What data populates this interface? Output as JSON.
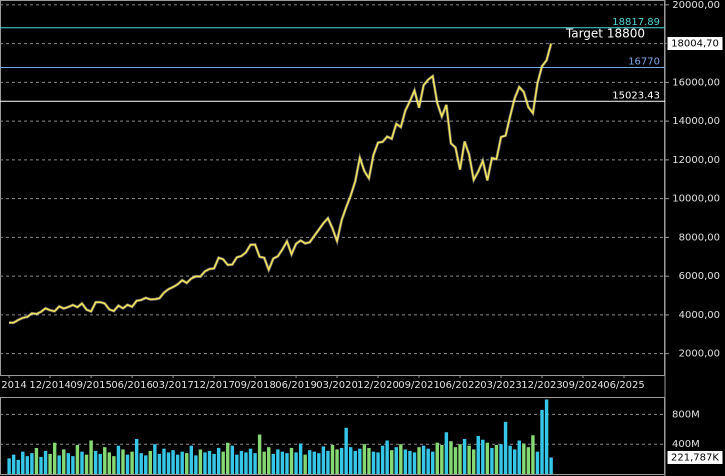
{
  "chart_data": {
    "type": "line",
    "x": [
      "03/2014",
      "04/2014",
      "05/2014",
      "06/2014",
      "07/2014",
      "08/2014",
      "09/2014",
      "10/2014",
      "11/2014",
      "12/2014",
      "01/2015",
      "02/2015",
      "03/2015",
      "04/2015",
      "05/2015",
      "06/2015",
      "07/2015",
      "08/2015",
      "09/2015",
      "10/2015",
      "11/2015",
      "12/2015",
      "01/2016",
      "02/2016",
      "03/2016",
      "04/2016",
      "05/2016",
      "06/2016",
      "07/2016",
      "08/2016",
      "09/2016",
      "10/2016",
      "11/2016",
      "12/2016",
      "01/2017",
      "02/2017",
      "03/2017",
      "04/2017",
      "05/2017",
      "06/2017",
      "07/2017",
      "08/2017",
      "09/2017",
      "10/2017",
      "11/2017",
      "12/2017",
      "01/2018",
      "02/2018",
      "03/2018",
      "04/2018",
      "05/2018",
      "06/2018",
      "07/2018",
      "08/2018",
      "09/2018",
      "10/2018",
      "11/2018",
      "12/2018",
      "01/2019",
      "02/2019",
      "03/2019",
      "04/2019",
      "05/2019",
      "06/2019",
      "07/2019",
      "08/2019",
      "09/2019",
      "10/2019",
      "11/2019",
      "12/2019",
      "01/2020",
      "02/2020",
      "03/2020",
      "04/2020",
      "05/2020",
      "06/2020",
      "07/2020",
      "08/2020",
      "09/2020",
      "10/2020",
      "11/2020",
      "12/2020",
      "01/2021",
      "02/2021",
      "03/2021",
      "04/2021",
      "05/2021",
      "06/2021",
      "07/2021",
      "08/2021",
      "09/2021",
      "10/2021",
      "11/2021",
      "12/2021",
      "01/2022",
      "02/2022",
      "03/2022",
      "04/2022",
      "05/2022",
      "06/2022",
      "07/2022",
      "08/2022",
      "09/2022",
      "10/2022",
      "11/2022",
      "12/2022",
      "01/2023",
      "02/2023",
      "03/2023",
      "04/2023",
      "05/2023",
      "06/2023",
      "07/2023",
      "08/2023",
      "09/2023",
      "10/2023",
      "11/2023",
      "12/2023",
      "01/2024",
      "02/2024"
    ],
    "series": [
      {
        "color": "#f2e35a",
        "values": [
          3600,
          3600,
          3740,
          3850,
          3900,
          4080,
          4050,
          4160,
          4340,
          4240,
          4190,
          4440,
          4330,
          4410,
          4510,
          4400,
          4590,
          4270,
          4180,
          4650,
          4660,
          4590,
          4280,
          4200,
          4480,
          4340,
          4520,
          4420,
          4730,
          4770,
          4880,
          4800,
          4810,
          4860,
          5150,
          5330,
          5440,
          5580,
          5790,
          5650,
          5880,
          5990,
          5980,
          6250,
          6370,
          6400,
          6950,
          6870,
          6580,
          6600,
          6970,
          7040,
          7230,
          7620,
          7630,
          7000,
          6950,
          6330,
          6910,
          7030,
          7380,
          7800,
          7130,
          7670,
          7840,
          7690,
          7750,
          8080,
          8400,
          8730,
          8990,
          8460,
          7810,
          8890,
          9550,
          10160,
          10900,
          12110,
          11420,
          11050,
          12260,
          12890,
          12930,
          13200,
          13090,
          13860,
          13690,
          14550,
          15030,
          15580,
          14690,
          15850,
          16140,
          16320,
          14930,
          14240,
          14840,
          12850,
          12640,
          11500,
          12950,
          12270,
          10970,
          11400,
          11950,
          10940,
          12100,
          12040,
          13180,
          13250,
          14250,
          15180,
          15760,
          15500,
          14720,
          14410,
          15950,
          16830,
          17140,
          18004.7
        ],
        "last_label": "18004,70"
      }
    ],
    "xlim": [
      "01/2014",
      "03/2026"
    ],
    "xticks": [
      {
        "value": "03/2014",
        "label": "2014"
      },
      "12/2014",
      "09/2015",
      "06/2016",
      "03/2017",
      "12/2017",
      "09/2018",
      "06/2019",
      "03/2020",
      "12/2020",
      "09/2021",
      "06/2022",
      "03/2023",
      "12/2023",
      "09/2024",
      "06/2025"
    ],
    "ylim": [
      900,
      20250
    ],
    "yticks": [
      {
        "value": 2000,
        "label": "2000,00"
      },
      {
        "value": 4000,
        "label": "4000,00"
      },
      {
        "value": 6000,
        "label": "6000,00"
      },
      {
        "value": 8000,
        "label": "8000,00"
      },
      {
        "value": 10000,
        "label": "10000,00"
      },
      {
        "value": 12000,
        "label": "12000,00"
      },
      {
        "value": 14000,
        "label": "14000,00"
      },
      {
        "value": 16000,
        "label": "16000,00"
      },
      {
        "value": 18000,
        "label": "18000,00"
      },
      {
        "value": 20000,
        "label": "20000,00"
      }
    ],
    "grid": true,
    "levels": [
      {
        "value": 18817.89,
        "color": "#4fd6d6"
      },
      {
        "value": 16770,
        "color": "#7aa7e6"
      },
      {
        "value": 15023.43,
        "color": "#ffffff"
      }
    ],
    "annotation": "Target 18800",
    "volume": {
      "values": [
        210,
        260,
        190,
        300,
        240,
        280,
        350,
        230,
        310,
        270,
        420,
        250,
        330,
        280,
        240,
        390,
        300,
        260,
        450,
        310,
        270,
        360,
        290,
        240,
        380,
        330,
        260,
        300,
        470,
        280,
        250,
        310,
        400,
        270,
        340,
        290,
        320,
        260,
        300,
        280,
        380,
        250,
        330,
        290,
        310,
        270,
        350,
        300,
        420,
        380,
        260,
        310,
        290,
        340,
        280,
        530,
        300,
        360,
        270,
        330,
        300,
        280,
        350,
        290,
        410,
        260,
        320,
        300,
        280,
        370,
        310,
        390,
        330,
        350,
        620,
        360,
        310,
        340,
        400,
        350,
        300,
        290,
        380,
        450,
        320,
        360,
        400,
        330,
        310,
        290,
        360,
        380,
        340,
        300,
        420,
        390,
        560,
        440,
        360,
        400,
        470,
        380,
        330,
        510,
        460,
        420,
        350,
        390,
        400,
        700,
        380,
        330,
        450,
        410,
        360,
        520,
        300,
        860,
        1000,
        221.787
      ],
      "last_label": "221,787K",
      "up_color": "#36c6e8",
      "down_color": "#86d873",
      "ylim": [
        0,
        1020
      ],
      "yticks": [
        {
          "value": 400,
          "label": "400M"
        },
        {
          "value": 800,
          "label": "800M"
        }
      ]
    }
  }
}
